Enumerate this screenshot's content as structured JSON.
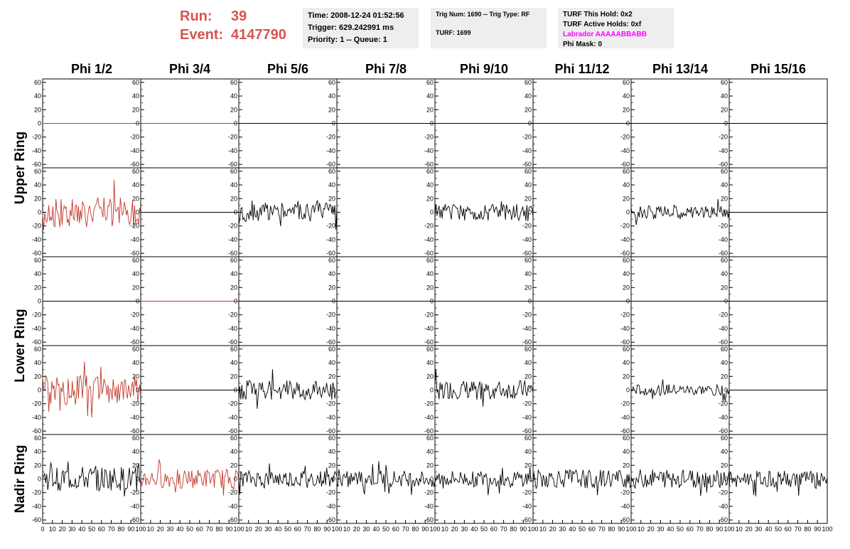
{
  "run": {
    "run_label": "Run:",
    "run_value": "39",
    "event_label": "Event:",
    "event_value": "4147790"
  },
  "info_time": {
    "line1": "Time: 2008-12-24 01:52:56",
    "line2": "Trigger: 629.242991 ms",
    "line3": "Priority: 1 -- Queue: 1"
  },
  "info_trig": {
    "line1": "Trig Num: 1690 -- Trig Type: RF",
    "line2": "TURF: 1699"
  },
  "info_turf": {
    "line1": "TURF This Hold: 0x2",
    "line2": "TURF Active Holds: 0xf",
    "line3": "Labrador AAAAABBABB",
    "line4": "Phi Mask: 0"
  },
  "colors": {
    "accent": "#d9534f",
    "labrador": "#ff00ff",
    "trace_red": "#c0392b",
    "trace_green": "#2e8b2e",
    "trace_black": "#000000"
  },
  "columns": [
    "Phi 1/2",
    "Phi 3/4",
    "Phi 5/6",
    "Phi 7/8",
    "Phi 9/10",
    "Phi 11/12",
    "Phi 13/14",
    "Phi 15/16"
  ],
  "ring_labels": [
    "Upper Ring",
    "Lower Ring",
    "Nadir Ring"
  ],
  "chart_data": {
    "type": "line",
    "title": "",
    "xlabel": "",
    "ylabel": "",
    "xlim": [
      0,
      100
    ],
    "ylim": [
      -65,
      65
    ],
    "yticks": [
      -60,
      -40,
      -20,
      0,
      20,
      40,
      60
    ],
    "xticks": [
      0,
      10,
      20,
      30,
      40,
      50,
      60,
      70,
      80,
      90,
      100
    ],
    "grid": false,
    "rows": [
      {
        "amplitudes": [
          0,
          0,
          0,
          0,
          0,
          0,
          0,
          0
        ],
        "colors": [
          "#2e8b2e",
          "#c0392b",
          "#000",
          "#000",
          "#000",
          "#000",
          "#000",
          "#000"
        ],
        "visible": [
          true,
          true,
          true,
          true,
          true,
          true,
          true,
          true
        ]
      },
      {
        "amplitudes": [
          22,
          0,
          14,
          0,
          12,
          0,
          10,
          0
        ],
        "colors": [
          "#c0392b",
          "#000",
          "#000",
          "#000",
          "#000",
          "#000",
          "#000",
          "#000"
        ],
        "visible": [
          true,
          true,
          true,
          false,
          true,
          false,
          true,
          true
        ]
      },
      {
        "amplitudes": [
          0,
          0,
          0,
          0,
          0,
          0,
          0,
          0
        ],
        "colors": [
          "#000",
          "#c0392b",
          "#000",
          "#000",
          "#000",
          "#000",
          "#000",
          "#000"
        ],
        "visible": [
          true,
          true,
          true,
          true,
          true,
          true,
          true,
          true
        ]
      },
      {
        "amplitudes": [
          22,
          0,
          14,
          0,
          14,
          0,
          8,
          0
        ],
        "colors": [
          "#c0392b",
          "#000",
          "#000",
          "#000",
          "#000",
          "#000",
          "#000",
          "#000"
        ],
        "visible": [
          true,
          true,
          true,
          false,
          true,
          false,
          true,
          true
        ]
      },
      {
        "amplitudes": [
          18,
          14,
          12,
          12,
          12,
          14,
          14,
          12
        ],
        "colors": [
          "#000",
          "#c0392b",
          "#000",
          "#000",
          "#000",
          "#000",
          "#000",
          "#000"
        ],
        "visible": [
          true,
          true,
          true,
          true,
          true,
          true,
          true,
          true
        ]
      }
    ]
  }
}
